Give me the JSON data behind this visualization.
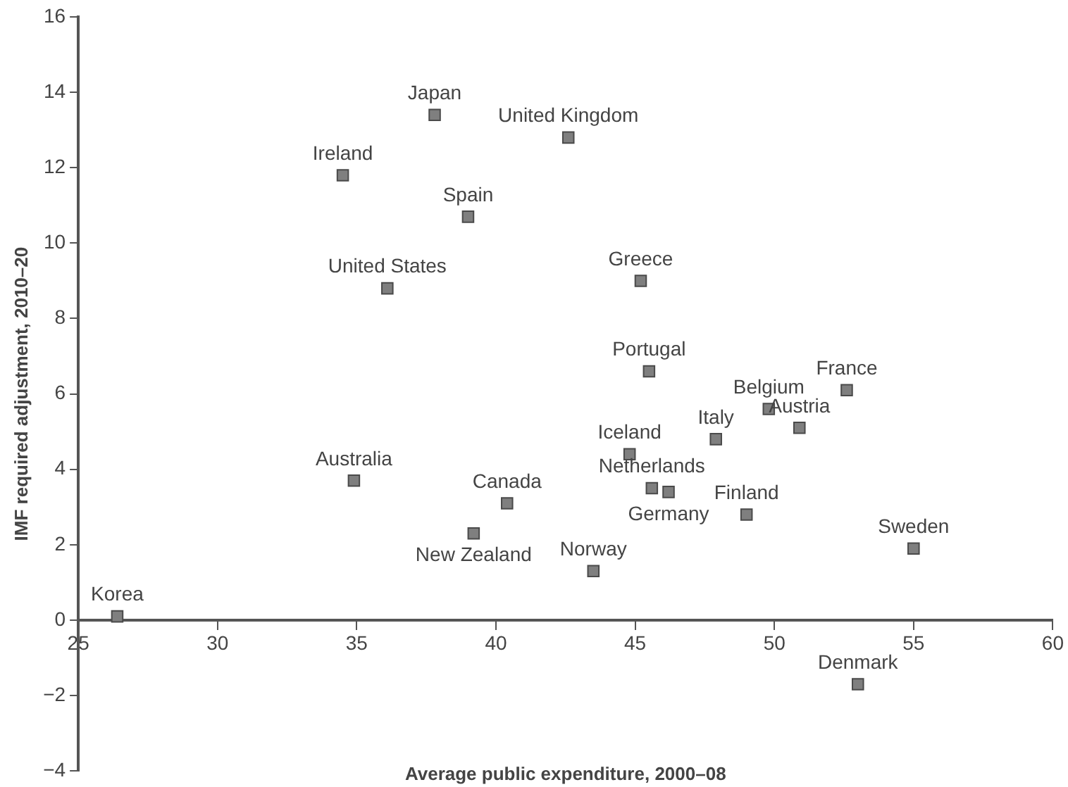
{
  "chart_data": {
    "type": "scatter",
    "xlabel": "Average public expenditure, 2000–08",
    "ylabel": "IMF required adjustment, 2010–20",
    "series": [
      {
        "color": "#7f7f7f",
        "x": [
          26.4,
          34.9,
          34.5,
          37.8,
          36.1,
          39.0,
          39.2,
          40.4,
          42.6,
          43.5,
          44.8,
          45.2,
          45.5,
          45.6,
          46.2,
          47.9,
          49.0,
          49.8,
          50.9,
          52.6,
          53.0,
          55.0
        ],
        "values": [
          0.1,
          3.7,
          11.8,
          13.4,
          8.8,
          10.7,
          2.3,
          3.1,
          12.8,
          1.3,
          4.4,
          9.0,
          6.6,
          3.5,
          3.4,
          4.8,
          2.8,
          5.6,
          5.1,
          6.1,
          -1.7,
          1.9
        ]
      }
    ],
    "annotations": [
      {
        "text": "Korea",
        "x": 26.4,
        "y": 0.1
      },
      {
        "text": "Australia",
        "x": 34.9,
        "y": 3.7
      },
      {
        "text": "Ireland",
        "x": 34.5,
        "y": 11.8
      },
      {
        "text": "Japan",
        "x": 37.8,
        "y": 13.4
      },
      {
        "text": "United States",
        "x": 36.1,
        "y": 8.8
      },
      {
        "text": "Spain",
        "x": 39.0,
        "y": 10.7
      },
      {
        "text": "New Zealand",
        "x": 39.2,
        "y": 2.3
      },
      {
        "text": "Canada",
        "x": 40.4,
        "y": 3.1
      },
      {
        "text": "United Kingdom",
        "x": 42.6,
        "y": 12.8
      },
      {
        "text": "Norway",
        "x": 43.5,
        "y": 1.3
      },
      {
        "text": "Iceland",
        "x": 44.8,
        "y": 4.4
      },
      {
        "text": "Greece",
        "x": 45.2,
        "y": 9.0
      },
      {
        "text": "Portugal",
        "x": 45.5,
        "y": 6.6
      },
      {
        "text": "Netherlands",
        "x": 45.6,
        "y": 3.5
      },
      {
        "text": "Germany",
        "x": 46.2,
        "y": 3.4
      },
      {
        "text": "Italy",
        "x": 47.9,
        "y": 4.8
      },
      {
        "text": "Finland",
        "x": 49.0,
        "y": 2.8
      },
      {
        "text": "Belgium",
        "x": 49.8,
        "y": 5.6
      },
      {
        "text": "Austria",
        "x": 50.9,
        "y": 5.1
      },
      {
        "text": "France",
        "x": 52.6,
        "y": 6.1
      },
      {
        "text": "Denmark",
        "x": 53.0,
        "y": -1.7
      },
      {
        "text": "Sweden",
        "x": 55.0,
        "y": 1.9
      }
    ],
    "xlim": [
      25,
      60
    ],
    "xticks": [
      25,
      30,
      35,
      40,
      45,
      50,
      55,
      60
    ],
    "ylim": [
      -4,
      16
    ],
    "yticks": [
      {
        "value": -4,
        "label": "−4"
      },
      {
        "value": -2,
        "label": "−2"
      },
      0,
      2,
      4,
      6,
      8,
      10,
      12,
      14,
      16
    ],
    "grid": false,
    "legend": false,
    "marker": "square"
  }
}
